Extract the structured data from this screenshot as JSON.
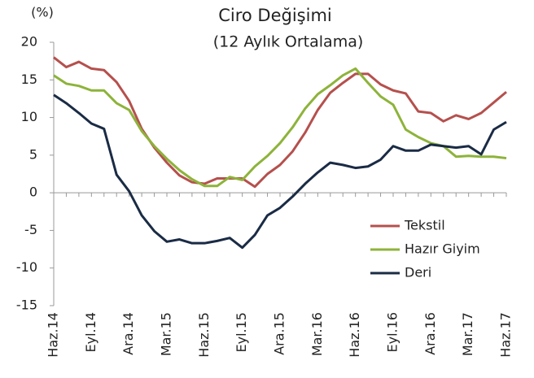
{
  "chart_data": {
    "type": "line",
    "title": "Ciro Değişimi",
    "subtitle": "(12 Aylık Ortalama)",
    "y_label": "(%)",
    "categories": [
      "Haz.14",
      null,
      null,
      "Eyl.14",
      null,
      null,
      "Ara.14",
      null,
      null,
      "Mar.15",
      null,
      null,
      "Haz.15",
      null,
      null,
      "Eyl.15",
      null,
      null,
      "Ara.15",
      null,
      null,
      "Mar.16",
      null,
      null,
      "Haz.16",
      null,
      null,
      "Eyl.16",
      null,
      null,
      "Ara.16",
      null,
      null,
      "Mar.17",
      null,
      null,
      "Haz.17"
    ],
    "series": [
      {
        "name": "Tekstil",
        "color": "#b5504d",
        "values": [
          18,
          16.7,
          17.4,
          16.5,
          16.3,
          14.7,
          12.2,
          8.5,
          6,
          4,
          2.3,
          1.4,
          1.2,
          1.9,
          1.9,
          1.9,
          0.8,
          2.5,
          3.7,
          5.5,
          8,
          11,
          13.3,
          14.6,
          15.8,
          15.8,
          14.4,
          13.6,
          13.2,
          10.8,
          10.6,
          9.5,
          10.3,
          9.8,
          10.6,
          12,
          13.4
        ]
      },
      {
        "name": "Hazır Giyim",
        "color": "#8db33a",
        "values": [
          15.6,
          14.5,
          14.2,
          13.6,
          13.6,
          11.9,
          11,
          8.2,
          6.2,
          4.5,
          3,
          1.8,
          0.9,
          0.9,
          2.1,
          1.7,
          3.5,
          4.9,
          6.6,
          8.7,
          11.2,
          13.1,
          14.3,
          15.6,
          16.5,
          14.6,
          12.8,
          11.7,
          8.4,
          7.4,
          6.6,
          6.2,
          4.8,
          4.9,
          4.8,
          4.8,
          4.6
        ]
      },
      {
        "name": "Deri",
        "color": "#1a2b45",
        "values": [
          13,
          11.9,
          10.6,
          9.2,
          8.5,
          2.4,
          0.2,
          -3,
          -5.1,
          -6.5,
          -6.2,
          -6.7,
          -6.7,
          -6.4,
          -6,
          -7.3,
          -5.6,
          -3,
          -2,
          -0.5,
          1.2,
          2.7,
          4,
          3.7,
          3.3,
          3.5,
          4.4,
          6.2,
          5.6,
          5.6,
          6.4,
          6.2,
          6,
          6.2,
          5.1,
          8.4,
          9.4
        ]
      }
    ],
    "ylim": [
      -15,
      20
    ],
    "yticks": [
      -15,
      -10,
      -5,
      0,
      5,
      10,
      15,
      20
    ],
    "grid": false,
    "legend": "lower right"
  }
}
